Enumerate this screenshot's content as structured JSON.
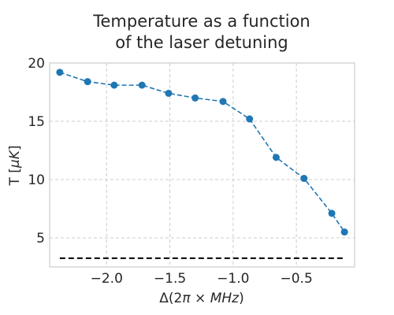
{
  "chart_data": {
    "type": "line",
    "title_lines": [
      "Temperature as a function",
      "of the laser detuning"
    ],
    "xlabel_parts": [
      "Δ(2",
      "π",
      " × ",
      "MHz",
      ")"
    ],
    "ylabel_parts": [
      "T [",
      "μK",
      "]"
    ],
    "xlim": [
      -2.45,
      -0.04
    ],
    "ylim": [
      2.5,
      20.0
    ],
    "grid": true,
    "x_ticks": [
      -2.0,
      -1.5,
      -1.0,
      -0.5
    ],
    "x_tick_labels": [
      "−2.0",
      "−1.5",
      "−1.0",
      "−0.5"
    ],
    "y_ticks": [
      5,
      10,
      15,
      20
    ],
    "y_tick_labels": [
      "5",
      "10",
      "15",
      "20"
    ],
    "series": [
      {
        "style": "dashed-line-with-markers",
        "color": "#1f77b4",
        "x": [
          -2.37,
          -2.15,
          -1.94,
          -1.72,
          -1.51,
          -1.3,
          -1.08,
          -0.87,
          -0.66,
          -0.44,
          -0.22,
          -0.12
        ],
        "y": [
          19.2,
          18.4,
          18.1,
          18.1,
          17.4,
          17.0,
          16.7,
          15.2,
          11.9,
          10.1,
          7.1,
          5.5
        ]
      },
      {
        "style": "dashed-line",
        "color": "#000000",
        "x": [
          -2.37,
          -0.12
        ],
        "y": [
          3.25,
          3.25
        ]
      }
    ]
  }
}
